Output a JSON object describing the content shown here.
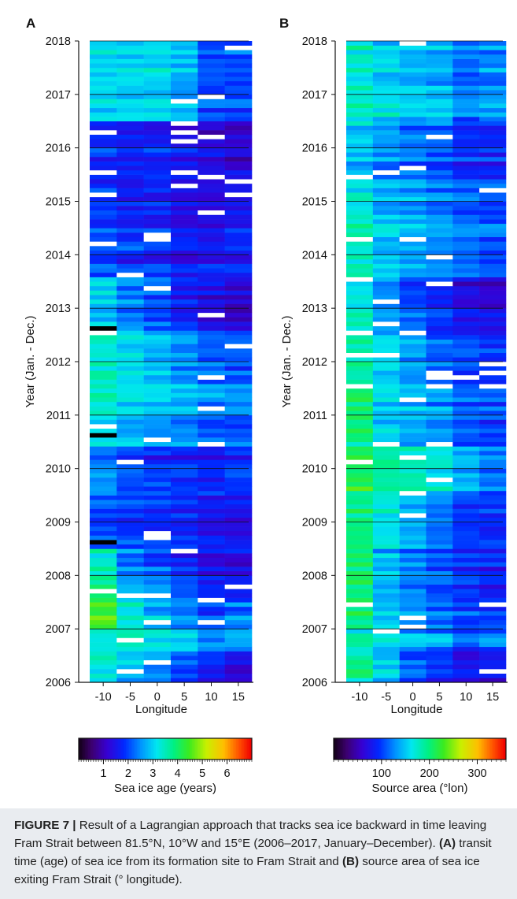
{
  "panels": [
    {
      "letter": "A"
    },
    {
      "letter": "B"
    }
  ],
  "colorbars": [
    {
      "label": "Sea ice age (years)",
      "ticks": [
        "1",
        "2",
        "3",
        "4",
        "5",
        "6"
      ],
      "tick_values": [
        1,
        2,
        3,
        4,
        5,
        6
      ],
      "range": [
        0,
        7
      ]
    },
    {
      "label": "Source area (°lon)",
      "ticks": [
        "100",
        "200",
        "300"
      ],
      "tick_values": [
        100,
        200,
        300
      ],
      "range": [
        0,
        360
      ]
    }
  ],
  "caption": {
    "prefix": "FIGURE 7 |",
    "part1": " Result of a Lagrangian approach that tracks sea ice backward in time leaving Fram Strait between 81.5°N, 10°W and 15°E (2006–2017, January–December). ",
    "label_a": "(A)",
    "part2": " transit time (age) of sea ice from its formation site to Fram Strait and ",
    "label_b": "(B)",
    "part3": " source area of sea ice exiting Fram Strait (° longitude)."
  },
  "chart_data": [
    {
      "type": "heatmap",
      "panel": "A",
      "ylabel": "Year (Jan. - Dec.)",
      "xlabel": "Longitude",
      "x_ticks": [
        -10,
        -5,
        0,
        5,
        10,
        15
      ],
      "y_ticks": [
        2006,
        2007,
        2008,
        2009,
        2010,
        2011,
        2012,
        2013,
        2014,
        2015,
        2016,
        2017,
        2018
      ],
      "ylim": [
        2006,
        2018
      ],
      "colorbar": "Sea ice age (years)",
      "colorbar_range": [
        0,
        7
      ],
      "columns": [
        -10,
        -5,
        0,
        5,
        10,
        15
      ],
      "period_age_profile": [
        {
          "from": 2006.0,
          "to": 2006.6,
          "values": [
            3.5,
            3.0,
            2.8,
            2.2,
            1.8,
            1.5
          ]
        },
        {
          "from": 2006.6,
          "to": 2007.0,
          "values": [
            3.2,
            3.4,
            3.2,
            3.0,
            2.4,
            2.6
          ]
        },
        {
          "from": 2007.0,
          "to": 2007.5,
          "values": [
            4.6,
            3.3,
            2.8,
            2.4,
            2.0,
            2.3
          ]
        },
        {
          "from": 2007.5,
          "to": 2008.5,
          "values": [
            3.6,
            2.4,
            2.2,
            1.9,
            1.6,
            1.5
          ]
        },
        {
          "from": 2008.5,
          "to": 2009.5,
          "values": [
            2.0,
            1.9,
            1.8,
            1.7,
            1.5,
            1.4
          ]
        },
        {
          "from": 2009.5,
          "to": 2010.4,
          "values": [
            2.3,
            1.9,
            1.8,
            1.7,
            1.6,
            1.7
          ]
        },
        {
          "from": 2010.4,
          "to": 2011.6,
          "values": [
            3.2,
            2.9,
            2.8,
            2.6,
            2.4,
            2.3
          ]
        },
        {
          "from": 2011.6,
          "to": 2012.6,
          "values": [
            3.6,
            3.2,
            2.9,
            2.6,
            2.3,
            2.2
          ]
        },
        {
          "from": 2012.6,
          "to": 2013.6,
          "values": [
            2.8,
            2.3,
            2.0,
            1.6,
            1.3,
            1.1
          ]
        },
        {
          "from": 2013.6,
          "to": 2015.3,
          "values": [
            2.0,
            1.8,
            1.8,
            1.6,
            1.5,
            1.6
          ]
        },
        {
          "from": 2015.3,
          "to": 2016.5,
          "values": [
            1.7,
            1.6,
            1.6,
            1.5,
            1.3,
            1.2
          ]
        },
        {
          "from": 2016.5,
          "to": 2018.0,
          "values": [
            3.0,
            3.0,
            3.0,
            2.7,
            2.0,
            2.0
          ]
        }
      ]
    },
    {
      "type": "heatmap",
      "panel": "B",
      "ylabel": "Year (Jan. - Dec.)",
      "xlabel": "Longitude",
      "x_ticks": [
        -10,
        -5,
        0,
        5,
        10,
        15
      ],
      "y_ticks": [
        2006,
        2007,
        2008,
        2009,
        2010,
        2011,
        2012,
        2013,
        2014,
        2015,
        2016,
        2017,
        2018
      ],
      "ylim": [
        2006,
        2018
      ],
      "colorbar": "Source area (°lon)",
      "colorbar_range": [
        0,
        360
      ],
      "columns": [
        -10,
        -5,
        0,
        5,
        10,
        15
      ],
      "period_source_profile": [
        {
          "from": 2006.0,
          "to": 2006.6,
          "values": [
            190,
            150,
            110,
            95,
            75,
            80
          ]
        },
        {
          "from": 2006.6,
          "to": 2007.0,
          "values": [
            180,
            150,
            140,
            130,
            110,
            120
          ]
        },
        {
          "from": 2007.0,
          "to": 2007.5,
          "values": [
            200,
            150,
            130,
            115,
            100,
            105
          ]
        },
        {
          "from": 2007.5,
          "to": 2008.5,
          "values": [
            200,
            140,
            120,
            105,
            90,
            85
          ]
        },
        {
          "from": 2008.5,
          "to": 2009.5,
          "values": [
            200,
            170,
            140,
            120,
            100,
            95
          ]
        },
        {
          "from": 2009.5,
          "to": 2010.4,
          "values": [
            210,
            185,
            175,
            165,
            140,
            120
          ]
        },
        {
          "from": 2010.4,
          "to": 2011.6,
          "values": [
            200,
            150,
            140,
            130,
            110,
            100
          ]
        },
        {
          "from": 2011.6,
          "to": 2012.6,
          "values": [
            185,
            155,
            130,
            110,
            100,
            95
          ]
        },
        {
          "from": 2012.6,
          "to": 2013.6,
          "values": [
            170,
            130,
            110,
            90,
            75,
            65
          ]
        },
        {
          "from": 2013.6,
          "to": 2015.3,
          "values": [
            175,
            150,
            140,
            130,
            115,
            110
          ]
        },
        {
          "from": 2015.3,
          "to": 2016.5,
          "values": [
            150,
            130,
            120,
            110,
            95,
            90
          ]
        },
        {
          "from": 2016.5,
          "to": 2018.0,
          "values": [
            175,
            160,
            150,
            145,
            120,
            130
          ]
        }
      ]
    }
  ]
}
